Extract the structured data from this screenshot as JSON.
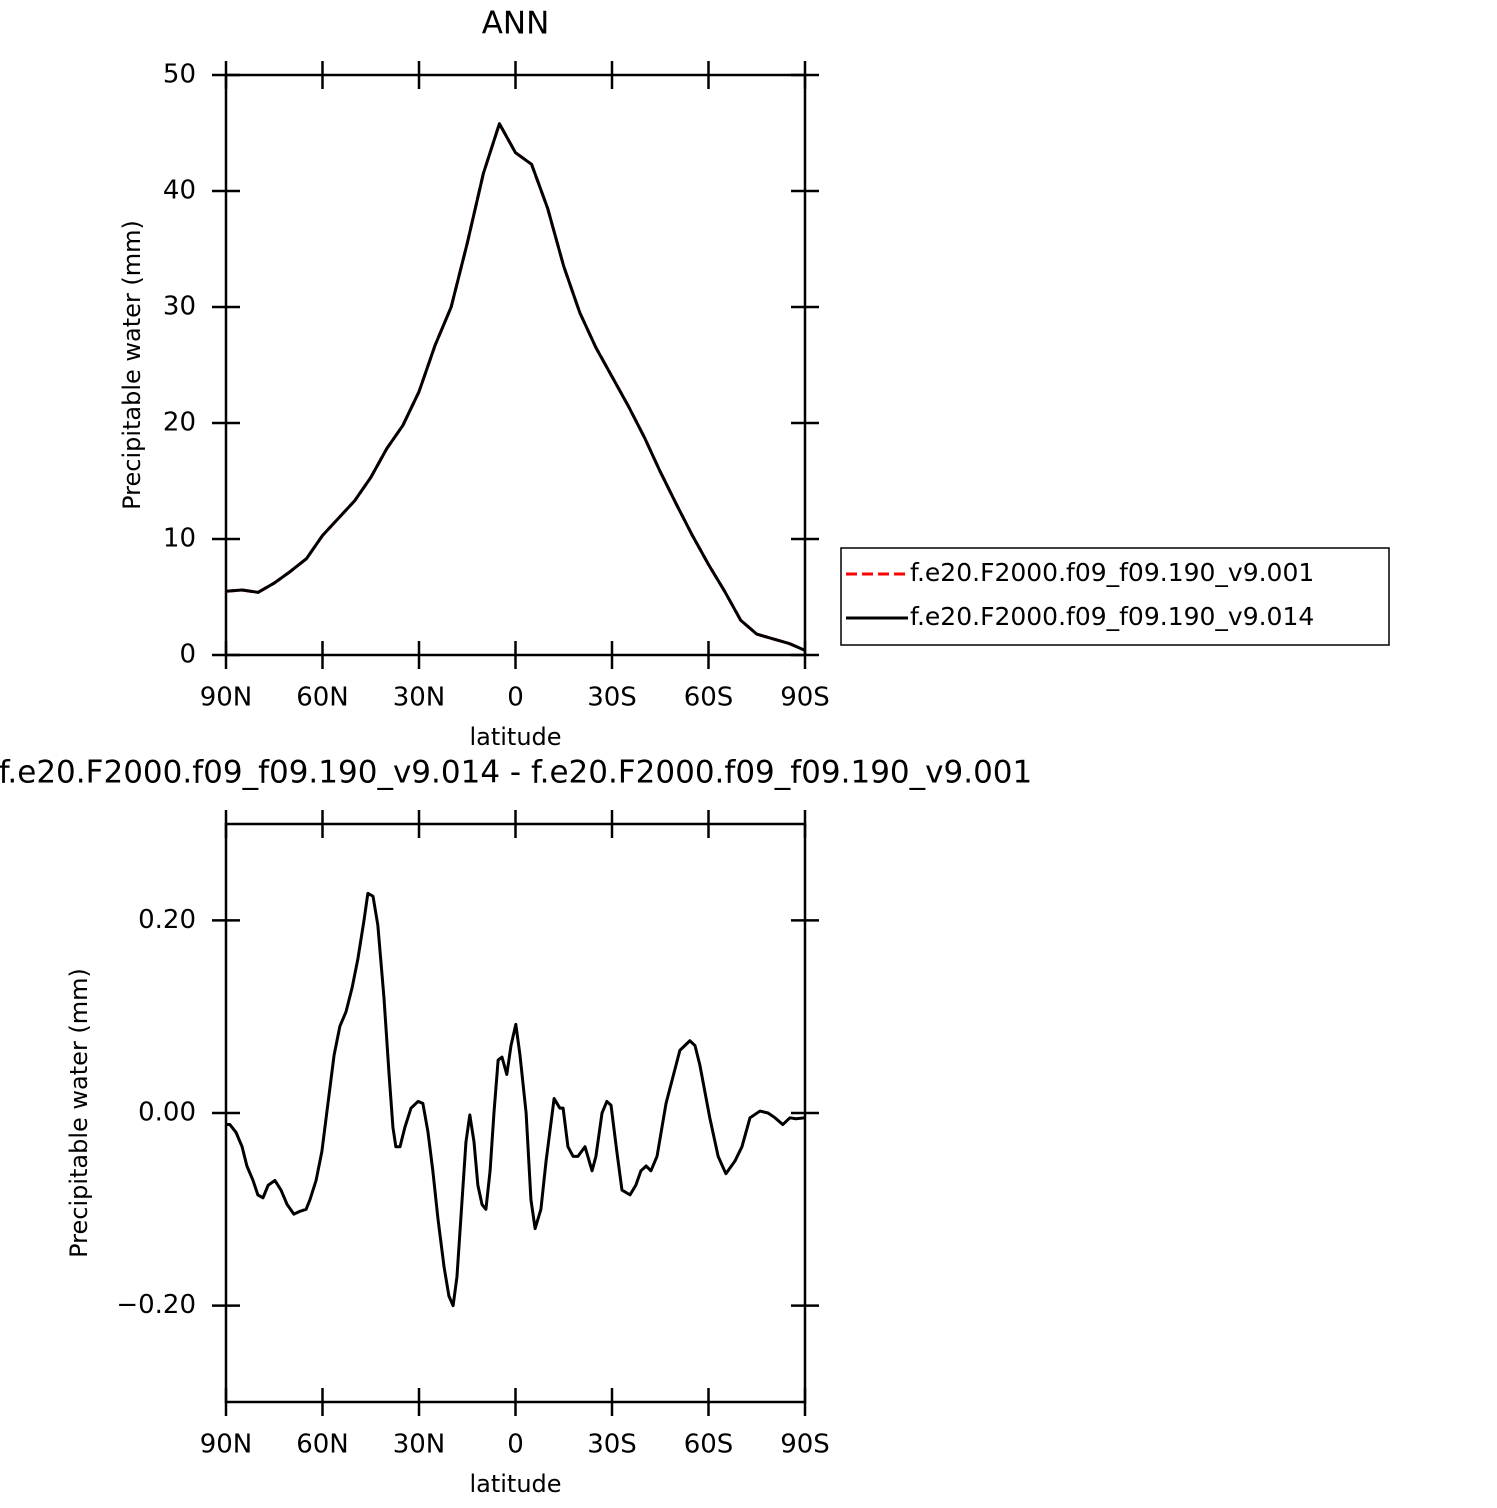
{
  "chart_data": [
    {
      "type": "line",
      "title": "ANN",
      "xlabel": "latitude",
      "ylabel": "Precipitable water (mm)",
      "x": [
        90,
        85,
        80,
        75,
        70,
        65,
        60,
        55,
        50,
        45,
        40,
        35,
        30,
        25,
        20,
        15,
        10,
        5,
        0,
        -5,
        -10,
        -15,
        -20,
        -25,
        -30,
        -35,
        -40,
        -45,
        -50,
        -55,
        -60,
        -65,
        -70,
        -75,
        -80,
        -85,
        -90
      ],
      "series": [
        {
          "name": "f.e20.F2000.f09_f09.190_v9.001",
          "color": "#ff0000",
          "dashed": true,
          "values": [
            5.5,
            5.6,
            5.4,
            6.2,
            7.2,
            8.3,
            10.3,
            11.8,
            13.3,
            15.3,
            17.8,
            19.8,
            22.7,
            26.7,
            30.0,
            35.5,
            41.5,
            45.8,
            43.3,
            42.3,
            38.5,
            33.5,
            29.5,
            26.5,
            24.0,
            21.5,
            18.8,
            15.8,
            13.0,
            10.3,
            7.8,
            5.5,
            3.0,
            1.8,
            1.4,
            1.0,
            0.4
          ]
        },
        {
          "name": "f.e20.F2000.f09_f09.190_v9.014",
          "color": "#000000",
          "dashed": false,
          "values": [
            5.5,
            5.6,
            5.4,
            6.2,
            7.2,
            8.3,
            10.3,
            11.8,
            13.3,
            15.3,
            17.8,
            19.8,
            22.7,
            26.7,
            30.0,
            35.5,
            41.5,
            45.8,
            43.3,
            42.3,
            38.5,
            33.5,
            29.5,
            26.5,
            24.0,
            21.5,
            18.8,
            15.8,
            13.0,
            10.3,
            7.8,
            5.5,
            3.0,
            1.8,
            1.4,
            1.0,
            0.4
          ]
        }
      ],
      "xlim": [
        90,
        -90
      ],
      "xticks": [
        {
          "value": 90,
          "label": "90N"
        },
        {
          "value": 60,
          "label": "60N"
        },
        {
          "value": 30,
          "label": "30N"
        },
        0,
        {
          "value": -30,
          "label": "30S"
        },
        {
          "value": -60,
          "label": "60S"
        },
        {
          "value": -90,
          "label": "90S"
        }
      ],
      "ylim": [
        0,
        50
      ],
      "yticks": [
        0,
        10,
        20,
        30,
        40,
        50
      ],
      "legend": "right",
      "grid": false
    },
    {
      "type": "line",
      "title": "f.e20.F2000.f09_f09.190_v9.014 - f.e20.F2000.f09_f09.190_v9.001",
      "xlabel": "latitude",
      "ylabel": "Precipitable water (mm)",
      "x": [
        90,
        88.8,
        86.9,
        85,
        83.5,
        81.6,
        80.1,
        78.5,
        76.9,
        74.8,
        72.9,
        71,
        68.9,
        67,
        65.1,
        63.9,
        62,
        60.2,
        58.3,
        56.4,
        54.6,
        52.7,
        50.8,
        49,
        47.1,
        45.9,
        44.3,
        42.8,
        40.9,
        39.3,
        38.1,
        37.2,
        35.9,
        34.4,
        32.5,
        30.3,
        28.8,
        27.2,
        25.7,
        24.1,
        22.2,
        20.7,
        19.4,
        18.2,
        16.6,
        15.4,
        14.2,
        12.9,
        11.7,
        10.4,
        9.2,
        7.9,
        6.7,
        5.4,
        4.2,
        2.7,
        1.4,
        -0.1,
        -1.4,
        -3.3,
        -4.8,
        -6.1,
        -7.9,
        -9.5,
        -12,
        -13.8,
        -14.8,
        -16.3,
        -17.9,
        -19.4,
        -21.6,
        -23.8,
        -25,
        -26.9,
        -28.4,
        -29.7,
        -31.5,
        -33.1,
        -35.6,
        -37.4,
        -39,
        -40.6,
        -42.1,
        -44,
        -46.8,
        -51.1,
        -54.2,
        -55.8,
        -57.3,
        -60.4,
        -63,
        -65.4,
        -68.2,
        -70.4,
        -72.9,
        -76,
        -78.5,
        -80.7,
        -83.1,
        -85.3,
        -87.2,
        -90
      ],
      "values": [
        -0.012,
        -0.012,
        -0.02,
        -0.035,
        -0.055,
        -0.07,
        -0.085,
        -0.088,
        -0.075,
        -0.07,
        -0.08,
        -0.095,
        -0.105,
        -0.102,
        -0.1,
        -0.09,
        -0.07,
        -0.04,
        0.01,
        0.06,
        0.09,
        0.105,
        0.13,
        0.16,
        0.2,
        0.228,
        0.225,
        0.195,
        0.12,
        0.04,
        -0.015,
        -0.035,
        -0.035,
        -0.015,
        0.005,
        0.012,
        0.01,
        -0.02,
        -0.06,
        -0.11,
        -0.16,
        -0.19,
        -0.2,
        -0.17,
        -0.09,
        -0.03,
        -0.002,
        -0.03,
        -0.075,
        -0.095,
        -0.1,
        -0.06,
        0.0,
        0.055,
        0.058,
        0.04,
        0.07,
        0.092,
        0.06,
        0.0,
        -0.09,
        -0.12,
        -0.1,
        -0.05,
        0.015,
        0.005,
        0.005,
        -0.035,
        -0.045,
        -0.045,
        -0.035,
        -0.06,
        -0.045,
        0.0,
        0.012,
        0.008,
        -0.04,
        -0.08,
        -0.085,
        -0.075,
        -0.06,
        -0.055,
        -0.06,
        -0.045,
        0.01,
        0.065,
        0.075,
        0.07,
        0.05,
        -0.005,
        -0.045,
        -0.063,
        -0.05,
        -0.035,
        -0.005,
        0.002,
        0.0,
        -0.005,
        -0.012,
        -0.005,
        -0.006,
        -0.005
      ],
      "color": "#000000",
      "xlim": [
        90,
        -90
      ],
      "xticks": [
        {
          "value": 90,
          "label": "90N"
        },
        {
          "value": 60,
          "label": "60N"
        },
        {
          "value": 30,
          "label": "30N"
        },
        0,
        {
          "value": -30,
          "label": "30S"
        },
        {
          "value": -60,
          "label": "60S"
        },
        {
          "value": -90,
          "label": "90S"
        }
      ],
      "ylim": [
        -0.3,
        0.3
      ],
      "yticks": [
        {
          "value": -0.2,
          "label": "−0.20"
        },
        {
          "value": 0,
          "label": "0.00"
        },
        {
          "value": 0.2,
          "label": "0.20"
        }
      ],
      "grid": false
    }
  ]
}
